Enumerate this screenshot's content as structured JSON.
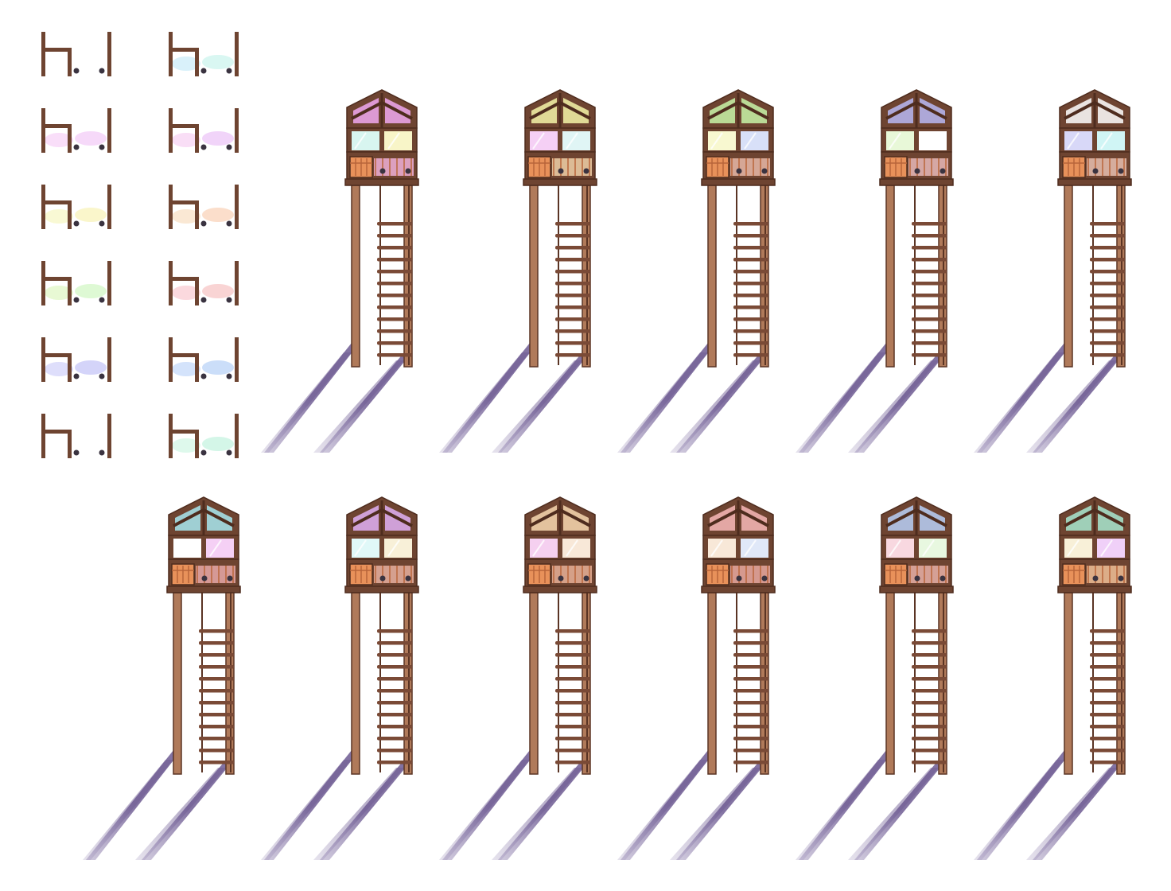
{
  "sprite_sheet": {
    "background": "#ffffff",
    "wood_colors": {
      "frame": "#6e4431",
      "frame_dark": "#4e2c1e",
      "post": "#b07a5a",
      "post_edge": "#5a3424",
      "crate": "#e8915a",
      "crate_dark": "#b8653a",
      "rope": "#7a4a36",
      "bolt": "#3a3340",
      "shadow": "#7a6899"
    },
    "small_pieces": [
      {
        "tint_a": "#ffffff",
        "tint_b": "#ffffff"
      },
      {
        "tint_a": "#bfe8f7",
        "tint_b": "#bff2ea"
      },
      {
        "tint_a": "#f5c8f5",
        "tint_b": "#f0c0f5"
      },
      {
        "tint_a": "#f5c8f0",
        "tint_b": "#e8b8f5"
      },
      {
        "tint_a": "#f5f5b8",
        "tint_b": "#f7f0a8"
      },
      {
        "tint_a": "#f7d8b8",
        "tint_b": "#f8c8a8"
      },
      {
        "tint_a": "#d8f5b8",
        "tint_b": "#c8f5b8"
      },
      {
        "tint_a": "#f8c0c8",
        "tint_b": "#f5b8b8"
      },
      {
        "tint_a": "#c8c8f8",
        "tint_b": "#b8b8f5"
      },
      {
        "tint_a": "#b8d0f8",
        "tint_b": "#a8c8f5"
      },
      {
        "tint_a": "#ffffff",
        "tint_b": "#ffffff"
      },
      {
        "tint_a": "#c8f5e0",
        "tint_b": "#b8f0d8"
      }
    ],
    "towers": [
      {
        "roof": "#f0a8f0",
        "win_left": "#d8f5f0",
        "win_right": "#f8f5c8",
        "railing": "#f0b0d8"
      },
      {
        "roof": "#f5f5a8",
        "win_left": "#f5d0f5",
        "win_right": "#e0f5f5",
        "railing": "#f0d0a8"
      },
      {
        "roof": "#c8f5a8",
        "win_left": "#f8f8d0",
        "win_right": "#d8e0f8",
        "railing": "#e8b8a8"
      },
      {
        "roof": "#b8b8f5",
        "win_left": "#e8f8d8",
        "win_right": "#ffffff",
        "railing": "#e8b8b8"
      },
      {
        "roof": "#ffffff",
        "win_left": "#d8d8f8",
        "win_right": "#d0f5f5",
        "railing": "#e8c0b0"
      },
      {
        "roof": "#a8e8f0",
        "win_left": "#ffffff",
        "win_right": "#f5d0f5",
        "railing": "#e8a8a8"
      },
      {
        "roof": "#e0b0f5",
        "win_left": "#e0f8f8",
        "win_right": "#f8f0d8",
        "railing": "#e8b0a0"
      },
      {
        "roof": "#f8d8b0",
        "win_left": "#f5d0f0",
        "win_right": "#f8e8d8",
        "railing": "#e8b098"
      },
      {
        "roof": "#f8b8b8",
        "win_left": "#f8e8d8",
        "win_right": "#e0e8f8",
        "railing": "#e8a8a0"
      },
      {
        "roof": "#b8d0f8",
        "win_left": "#f8d8e0",
        "win_right": "#e8f8e0",
        "railing": "#e8b0a8"
      },
      {
        "roof": "#a8e8d0",
        "win_left": "#f8f0d8",
        "win_right": "#f0d0f8",
        "railing": "#f0c098"
      }
    ]
  }
}
